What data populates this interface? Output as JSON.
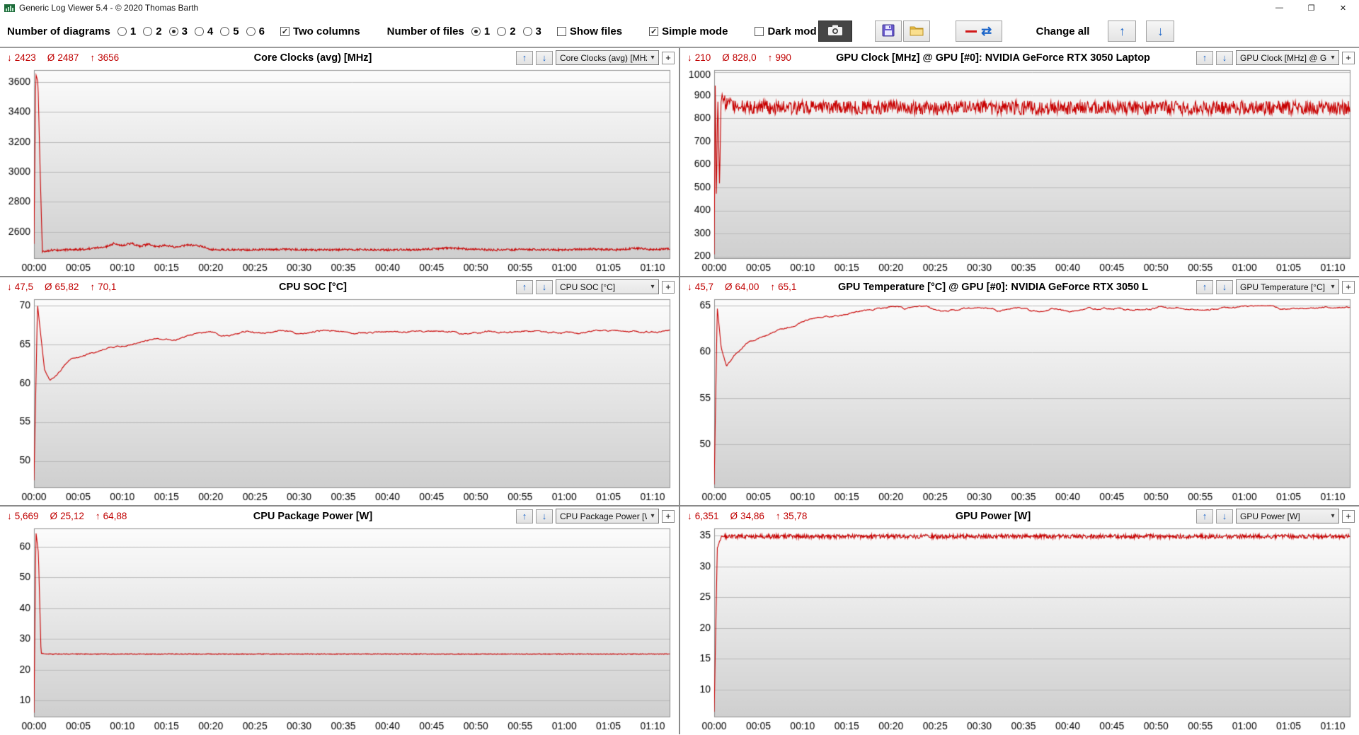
{
  "window": {
    "title": "Generic Log Viewer 5.4 - © 2020 Thomas Barth"
  },
  "icons": {
    "min_arrow": "↓",
    "avg": "Ø",
    "max_arrow": "↑",
    "up_arrow": "↑",
    "down_arrow": "↓",
    "caret": "▾",
    "plus": "+",
    "minimize": "—",
    "restore": "❐",
    "close": "✕",
    "sync": "⇄"
  },
  "toolbar": {
    "diagrams_label": "Number of diagrams",
    "diagram_options": [
      "1",
      "2",
      "3",
      "4",
      "5",
      "6"
    ],
    "diagrams_selected": "3",
    "two_columns_label": "Two columns",
    "two_columns_checked": true,
    "files_label": "Number of files",
    "file_options": [
      "1",
      "2",
      "3"
    ],
    "files_selected": "1",
    "show_files_label": "Show files",
    "show_files_checked": false,
    "simple_mode_label": "Simple mode",
    "simple_mode_checked": true,
    "dark_mode_label": "Dark mod",
    "dark_mode_checked": false,
    "change_all_label": "Change all",
    "check_glyph": "✓"
  },
  "axis": {
    "x_ticks": [
      "00:00",
      "00:05",
      "00:10",
      "00:15",
      "00:20",
      "00:25",
      "00:30",
      "00:35",
      "00:40",
      "00:45",
      "00:50",
      "00:55",
      "01:00",
      "01:05",
      "01:10"
    ],
    "x_tick_step_minutes": 5,
    "x_max_minutes": 72
  },
  "chart_data": [
    {
      "type": "line",
      "line_color": "#c80000",
      "title": "Core Clocks (avg) [MHz]",
      "dropdown": "Core Clocks (avg) [MHz]",
      "stats": {
        "min": "2423",
        "avg": "2487",
        "max": "3656"
      },
      "y_ticks": [
        2600,
        2800,
        3000,
        3200,
        3400,
        3600
      ],
      "ylim": [
        2420,
        3680
      ],
      "seed": 11,
      "noise": {
        "amp": 7,
        "type": "jitter"
      },
      "anchors": [
        [
          0,
          2520
        ],
        [
          0.2,
          3656
        ],
        [
          0.45,
          3600
        ],
        [
          0.7,
          3000
        ],
        [
          0.95,
          2470
        ],
        [
          2,
          2478
        ],
        [
          5,
          2482
        ],
        [
          8,
          2498
        ],
        [
          9,
          2522
        ],
        [
          10,
          2508
        ],
        [
          11,
          2524
        ],
        [
          12,
          2504
        ],
        [
          13,
          2519
        ],
        [
          14,
          2500
        ],
        [
          15,
          2512
        ],
        [
          16,
          2496
        ],
        [
          17.5,
          2514
        ],
        [
          19,
          2504
        ],
        [
          20,
          2482
        ],
        [
          24,
          2480
        ],
        [
          28,
          2484
        ],
        [
          32,
          2479
        ],
        [
          36,
          2483
        ],
        [
          40,
          2480
        ],
        [
          44,
          2482
        ],
        [
          47,
          2494
        ],
        [
          49,
          2486
        ],
        [
          52,
          2480
        ],
        [
          56,
          2483
        ],
        [
          60,
          2481
        ],
        [
          63,
          2486
        ],
        [
          66,
          2480
        ],
        [
          68,
          2491
        ],
        [
          70,
          2483
        ],
        [
          72,
          2486
        ]
      ]
    },
    {
      "type": "line",
      "line_color": "#c80000",
      "title": "GPU Clock [MHz] @ GPU [#0]: NVIDIA GeForce RTX 3050 Laptop",
      "dropdown": "GPU Clock [MHz] @ GPU",
      "stats": {
        "min": "210",
        "avg": "828,0",
        "max": "990"
      },
      "y_ticks": [
        200,
        300,
        400,
        500,
        600,
        700,
        800,
        900,
        1000
      ],
      "ylim": [
        190,
        1010
      ],
      "seed": 22,
      "noise": {
        "amp": 30,
        "type": "jitter"
      },
      "anchors": [
        [
          0,
          210
        ],
        [
          0.12,
          940
        ],
        [
          0.25,
          430
        ],
        [
          0.4,
          915
        ],
        [
          0.6,
          520
        ],
        [
          0.8,
          890
        ],
        [
          1.2,
          870
        ],
        [
          2,
          858
        ],
        [
          4,
          850
        ],
        [
          8,
          846
        ],
        [
          12,
          850
        ],
        [
          16,
          845
        ],
        [
          20,
          848
        ],
        [
          24,
          844
        ],
        [
          28,
          849
        ],
        [
          32,
          845
        ],
        [
          36,
          847
        ],
        [
          40,
          844
        ],
        [
          44,
          848
        ],
        [
          48,
          845
        ],
        [
          52,
          847
        ],
        [
          56,
          844
        ],
        [
          60,
          847
        ],
        [
          64,
          845
        ],
        [
          68,
          848
        ],
        [
          72,
          846
        ]
      ]
    },
    {
      "type": "line",
      "line_color": "#c80000",
      "title": "CPU SOC [°C]",
      "dropdown": "CPU SOC [°C]",
      "stats": {
        "min": "47,5",
        "avg": "65,82",
        "max": "70,1"
      },
      "y_ticks": [
        50,
        55,
        60,
        65,
        70
      ],
      "ylim": [
        46.5,
        70.8
      ],
      "seed": 33,
      "noise": {
        "amp": 0.25,
        "type": "smooth"
      },
      "anchors": [
        [
          0,
          47.5
        ],
        [
          0.4,
          70.1
        ],
        [
          1.2,
          61.5
        ],
        [
          1.8,
          60.2
        ],
        [
          2.5,
          60.8
        ],
        [
          4,
          62.8
        ],
        [
          6,
          63.8
        ],
        [
          8,
          64.6
        ],
        [
          10,
          64.9
        ],
        [
          12,
          65.3
        ],
        [
          14,
          65.9
        ],
        [
          16,
          65.7
        ],
        [
          18,
          66.2
        ],
        [
          20,
          66.4
        ],
        [
          22,
          65.9
        ],
        [
          24,
          66.5
        ],
        [
          26,
          66.2
        ],
        [
          28,
          66.6
        ],
        [
          30,
          66.3
        ],
        [
          33,
          66.6
        ],
        [
          36,
          66.3
        ],
        [
          40,
          66.4
        ],
        [
          44,
          66.5
        ],
        [
          48,
          66.4
        ],
        [
          52,
          66.5
        ],
        [
          56,
          66.5
        ],
        [
          60,
          66.5
        ],
        [
          64,
          66.6
        ],
        [
          68,
          66.5
        ],
        [
          72,
          66.7
        ]
      ]
    },
    {
      "type": "line",
      "line_color": "#c80000",
      "title": "GPU Temperature [°C] @ GPU [#0]: NVIDIA GeForce RTX 3050 L",
      "dropdown": "GPU Temperature [°C] @",
      "stats": {
        "min": "45,7",
        "avg": "64,00",
        "max": "65,1"
      },
      "y_ticks": [
        50,
        55,
        60,
        65
      ],
      "ylim": [
        45.3,
        65.7
      ],
      "seed": 44,
      "noise": {
        "amp": 0.2,
        "type": "smooth"
      },
      "anchors": [
        [
          0,
          45.7
        ],
        [
          0.35,
          64.8
        ],
        [
          0.8,
          60.5
        ],
        [
          1.4,
          58.6
        ],
        [
          2.5,
          60
        ],
        [
          4,
          61.2
        ],
        [
          6,
          62
        ],
        [
          8,
          62.7
        ],
        [
          10,
          63.2
        ],
        [
          12,
          63.6
        ],
        [
          14,
          63.9
        ],
        [
          16,
          64.2
        ],
        [
          18,
          64.5
        ],
        [
          20,
          64.8
        ],
        [
          22,
          64.6
        ],
        [
          24,
          64.9
        ],
        [
          26,
          64.4
        ],
        [
          28,
          64.8
        ],
        [
          30,
          65
        ],
        [
          32,
          64.5
        ],
        [
          34,
          64.8
        ],
        [
          36,
          64.4
        ],
        [
          38,
          64.7
        ],
        [
          40,
          64.5
        ],
        [
          44,
          64.7
        ],
        [
          48,
          64.6
        ],
        [
          52,
          64.8
        ],
        [
          56,
          64.7
        ],
        [
          60,
          64.8
        ],
        [
          64,
          64.8
        ],
        [
          68,
          64.9
        ],
        [
          72,
          65
        ]
      ]
    },
    {
      "type": "line",
      "line_color": "#c80000",
      "title": "CPU Package Power [W]",
      "dropdown": "CPU Package Power [W]",
      "stats": {
        "min": "5,669",
        "avg": "25,12",
        "max": "64,88"
      },
      "y_ticks": [
        10,
        20,
        30,
        40,
        50,
        60
      ],
      "ylim": [
        4.5,
        66
      ],
      "seed": 55,
      "noise": {
        "amp": 0.12,
        "type": "jitter"
      },
      "anchors": [
        [
          0,
          6
        ],
        [
          0.22,
          64.9
        ],
        [
          0.5,
          58
        ],
        [
          0.8,
          25.4
        ],
        [
          1.5,
          25.1
        ],
        [
          72,
          25.1
        ]
      ]
    },
    {
      "type": "line",
      "line_color": "#c80000",
      "title": "GPU Power [W]",
      "dropdown": "GPU Power [W]",
      "stats": {
        "min": "6,351",
        "avg": "34,86",
        "max": "35,78"
      },
      "y_ticks": [
        10,
        15,
        20,
        25,
        30,
        35
      ],
      "ylim": [
        5.5,
        36.2
      ],
      "seed": 66,
      "noise": {
        "amp": 0.35,
        "type": "jitter"
      },
      "anchors": [
        [
          0,
          6.4
        ],
        [
          0.35,
          33
        ],
        [
          0.8,
          34.8
        ],
        [
          1.5,
          34.9
        ],
        [
          72,
          34.9
        ]
      ]
    }
  ]
}
